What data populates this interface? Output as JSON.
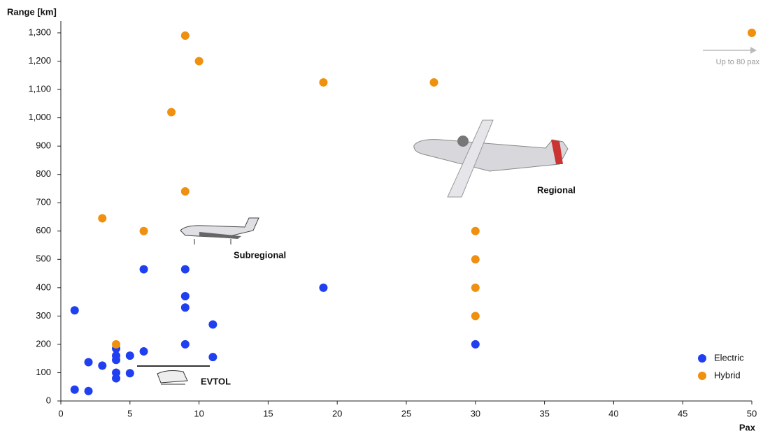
{
  "chart_data": {
    "type": "scatter",
    "y_label": "Range [km]",
    "x_label": "Pax",
    "xlim": [
      0,
      50
    ],
    "xticks": [
      0,
      5,
      10,
      15,
      20,
      25,
      30,
      35,
      40,
      45,
      50
    ],
    "ylim": [
      0,
      1300
    ],
    "yticks": [
      0,
      100,
      200,
      300,
      400,
      500,
      600,
      700,
      800,
      900,
      {
        "value": 1000,
        "label": "1,000"
      },
      {
        "value": 1100,
        "label": "1,100"
      },
      {
        "value": 1200,
        "label": "1,200"
      },
      {
        "value": 1300,
        "label": "1,300"
      }
    ],
    "grid": false,
    "legend": "lower right",
    "annotations": {
      "arrow": "Up to 80 pax",
      "regional": "Regional",
      "subregional": "Subregional",
      "evtol": "EVTOL"
    },
    "series": [
      {
        "name": "Electric",
        "color": "#1f3ff0",
        "x": [
          1,
          1,
          2,
          2,
          3,
          4,
          4,
          4,
          4,
          4,
          5,
          5,
          6,
          6,
          9,
          9,
          9,
          9,
          11,
          11,
          19,
          30
        ],
        "values": [
          320,
          40,
          35,
          137,
          125,
          185,
          160,
          145,
          100,
          80,
          160,
          98,
          175,
          465,
          465,
          370,
          330,
          200,
          270,
          155,
          400,
          200
        ]
      },
      {
        "name": "Hybrid",
        "color": "#f0900f",
        "x": [
          3,
          4,
          6,
          8,
          9,
          9,
          10,
          19,
          27,
          30,
          30,
          30,
          30,
          50
        ],
        "values": [
          645,
          200,
          600,
          1020,
          1290,
          740,
          1200,
          1125,
          1125,
          600,
          500,
          400,
          300,
          1300
        ]
      }
    ]
  }
}
